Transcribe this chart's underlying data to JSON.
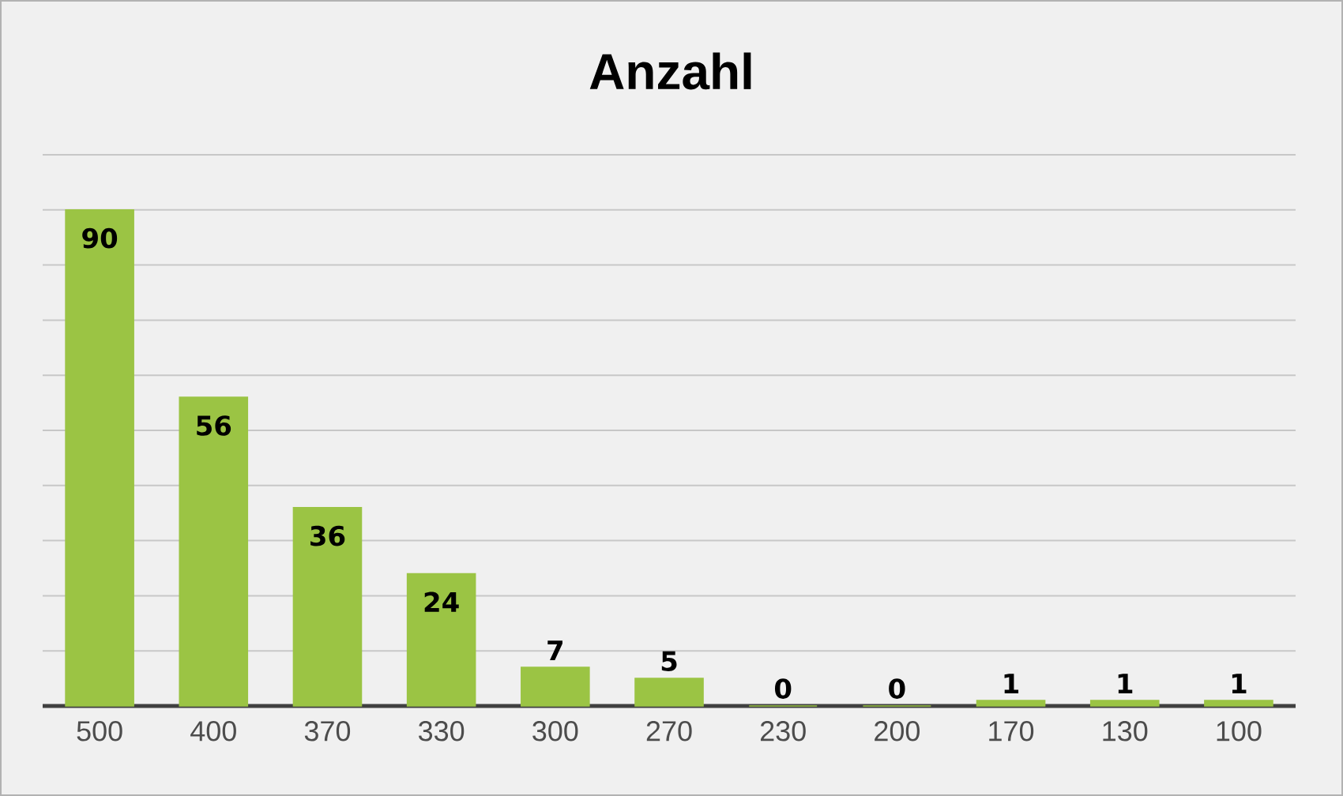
{
  "chart_data": {
    "type": "bar",
    "title": "Anzahl",
    "categories": [
      "500",
      "400",
      "370",
      "330",
      "300",
      "270",
      "230",
      "200",
      "170",
      "130",
      "100"
    ],
    "values": [
      90,
      56,
      36,
      24,
      7,
      5,
      0,
      0,
      1,
      1,
      1
    ],
    "color": "#9bc444",
    "tick_labels": "x",
    "grid": "y",
    "data_labels": true
  }
}
